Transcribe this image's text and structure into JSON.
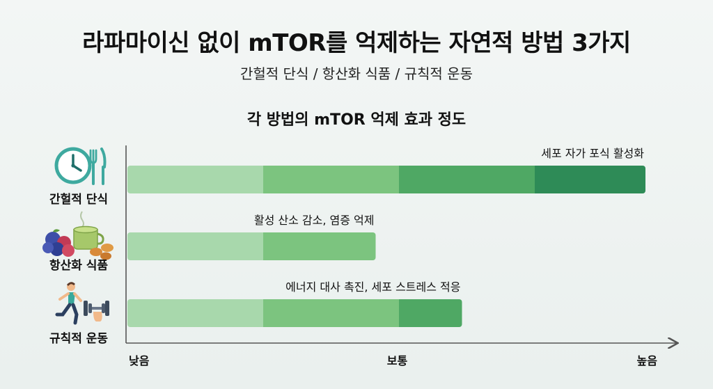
{
  "header": {
    "title": "라파마이신 없이 mTOR를 억제하는 자연적 방법 3가지",
    "subtitle": "간헐적 단식 / 항산화 식품 / 규칙적 운동"
  },
  "chart_data": {
    "type": "bar",
    "orientation": "horizontal",
    "title": "각 방법의 mTOR 억제 효과 정도",
    "categories": [
      "간헐적 단식",
      "항산화 식품",
      "규칙적 운동"
    ],
    "values": [
      4.8,
      2.3,
      3.1
    ],
    "annotations": [
      "세포 자가 포식 활성화",
      "활성 산소 감소, 염증 억제",
      "에너지 대사 촉진, 세포 스트레스 적응"
    ],
    "xlim": [
      0,
      5
    ],
    "xticks": [
      {
        "value": 0,
        "label": "낮음"
      },
      {
        "value": 2.5,
        "label": "보통"
      },
      {
        "value": 5,
        "label": "높음"
      }
    ],
    "grid": false,
    "colors": [
      "#a8d8ac",
      "#7cc47f",
      "#4fa864",
      "#2e8b57"
    ],
    "icons": [
      "clock-fork-knife-icon",
      "berries-green-tea-icon",
      "runner-dumbbell-icon"
    ]
  }
}
